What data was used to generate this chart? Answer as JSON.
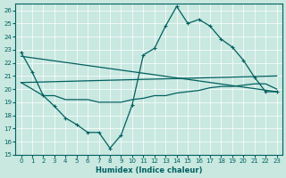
{
  "xlabel": "Humidex (Indice chaleur)",
  "bg_color": "#c8e8e0",
  "line_color": "#006060",
  "xlim": [
    -0.5,
    23.5
  ],
  "ylim": [
    15,
    26.5
  ],
  "yticks": [
    15,
    16,
    17,
    18,
    19,
    20,
    21,
    22,
    23,
    24,
    25,
    26
  ],
  "xticks": [
    0,
    1,
    2,
    3,
    4,
    5,
    6,
    7,
    8,
    9,
    10,
    11,
    12,
    13,
    14,
    15,
    16,
    17,
    18,
    19,
    20,
    21,
    22,
    23
  ],
  "line1_x": [
    0,
    1,
    2,
    3,
    4,
    5,
    6,
    7,
    8,
    9,
    10,
    11,
    12,
    13,
    14,
    15,
    16,
    17,
    18,
    19,
    20,
    21,
    22,
    23
  ],
  "line1_y": [
    22.8,
    21.3,
    19.5,
    18.7,
    17.8,
    17.3,
    16.7,
    16.7,
    15.5,
    16.5,
    18.8,
    22.6,
    23.1,
    24.8,
    26.3,
    25.0,
    25.3,
    24.8,
    23.8,
    23.2,
    22.2,
    20.9,
    19.8,
    19.8
  ],
  "line2_x": [
    0,
    23
  ],
  "line2_y": [
    20.5,
    21.0
  ],
  "line3_x": [
    0,
    23
  ],
  "line3_y": [
    22.5,
    19.8
  ],
  "line4_x": [
    0,
    1,
    2,
    3,
    4,
    5,
    6,
    7,
    8,
    9,
    10,
    11,
    12,
    13,
    14,
    15,
    16,
    17,
    18,
    19,
    20,
    21,
    22,
    23
  ],
  "line4_y": [
    20.5,
    20.0,
    19.5,
    19.5,
    19.2,
    19.2,
    19.2,
    19.0,
    19.0,
    19.0,
    19.2,
    19.3,
    19.5,
    19.5,
    19.7,
    19.8,
    19.9,
    20.1,
    20.2,
    20.2,
    20.3,
    20.4,
    20.4,
    20.0
  ]
}
